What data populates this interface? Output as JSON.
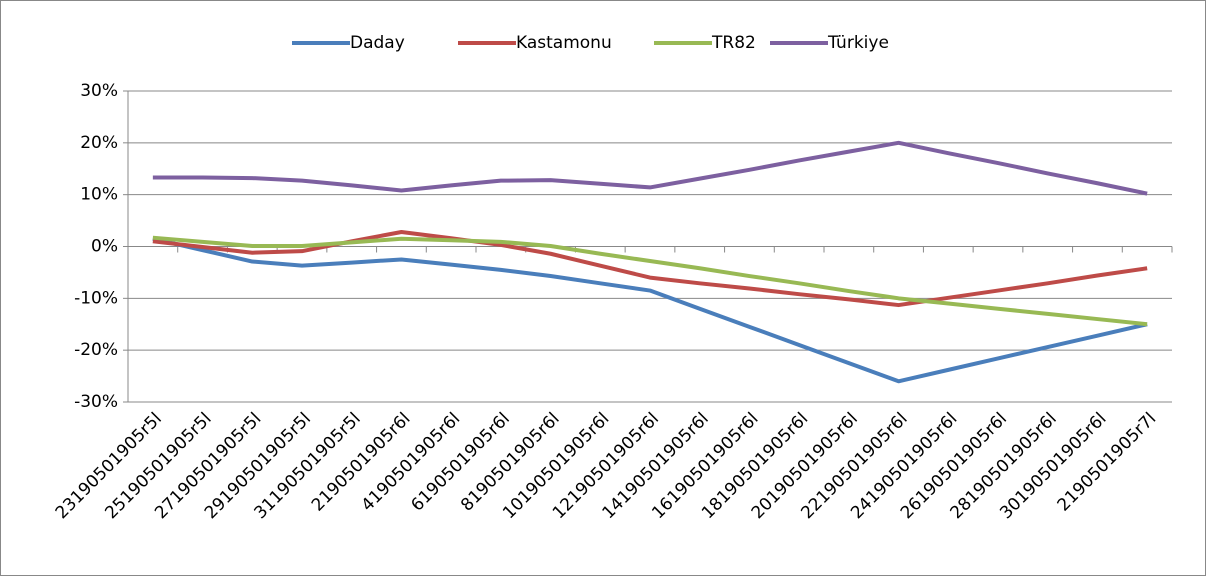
{
  "chart_data": {
    "type": "line",
    "categories": [
      "23190501905r5l",
      "25190501905r5l",
      "27190501905r5l",
      "29190501905r5l",
      "31190501905r5l",
      "2190501905r6l",
      "4190501905r6l",
      "6190501905r6l",
      "8190501905r6l",
      "10190501905r6l",
      "12190501905r6l",
      "14190501905r6l",
      "16190501905r6l",
      "18190501905r6l",
      "20190501905r6l",
      "22190501905r6l",
      "24190501905r6l",
      "26190501905r6l",
      "28190501905r6l",
      "30190501905r6l",
      "2190501905r7l"
    ],
    "series": [
      {
        "name": "Daday",
        "color": "#4a7ebb",
        "values": [
          1.5,
          -0.7,
          -2.9,
          -3.7,
          -3.1,
          -2.5,
          -3.5,
          -4.5,
          -5.7,
          -7.1,
          -8.5,
          -12,
          -15.5,
          -19,
          -22.5,
          -26,
          -23.8,
          -21.6,
          -19.4,
          -17.2,
          -15
        ]
      },
      {
        "name": "Kastamonu",
        "color": "#be4b48",
        "values": [
          1,
          -0.1,
          -1.2,
          -0.9,
          1,
          2.8,
          1.6,
          0.3,
          -1.4,
          -3.7,
          -6,
          -7.1,
          -8.1,
          -9.2,
          -10.2,
          -11.3,
          -9.9,
          -8.5,
          -7.1,
          -5.6,
          -4.2
        ]
      },
      {
        "name": "TR82",
        "color": "#98b954",
        "values": [
          1.7,
          0.9,
          0.1,
          0.1,
          0.8,
          1.5,
          1.2,
          0.9,
          0.1,
          -1.4,
          -2.8,
          -4.2,
          -5.7,
          -7.1,
          -8.6,
          -10,
          -11,
          -12,
          -13,
          -14,
          -15
        ]
      },
      {
        "name": "Türkiye",
        "color": "#7d60a0",
        "values": [
          13.3,
          13.3,
          13.2,
          12.7,
          11.8,
          10.8,
          11.8,
          12.7,
          12.8,
          12.1,
          11.4,
          13.1,
          14.8,
          16.6,
          18.3,
          20,
          18,
          16.1,
          14.1,
          12.2,
          10.2
        ]
      }
    ],
    "ylim": [
      -30,
      30
    ],
    "yticks": [
      {
        "value": -30,
        "label": "-30%"
      },
      {
        "value": -20,
        "label": "-20%"
      },
      {
        "value": -10,
        "label": "-10%"
      },
      {
        "value": 0,
        "label": "0%"
      },
      {
        "value": 10,
        "label": "10%"
      },
      {
        "value": 20,
        "label": "20%"
      },
      {
        "value": 30,
        "label": "30%"
      }
    ],
    "grid": true,
    "legend": "top"
  }
}
